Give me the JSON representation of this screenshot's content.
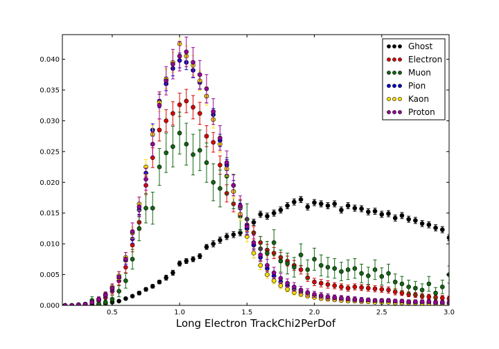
{
  "chart_data": {
    "type": "scatter",
    "title": "",
    "xlabel": "Long Electron TrackChi2PerDof",
    "ylabel": "",
    "xlim": [
      0.13,
      3.0
    ],
    "ylim": [
      0.0,
      0.044
    ],
    "xticks": [
      0.5,
      1.0,
      1.5,
      2.0,
      2.5,
      3.0
    ],
    "xtick_labels": [
      "0.5",
      "1.0",
      "1.5",
      "2.0",
      "2.5",
      "3.0"
    ],
    "yticks": [
      0.0,
      0.005,
      0.01,
      0.015,
      0.02,
      0.025,
      0.03,
      0.035,
      0.04
    ],
    "ytick_labels": [
      "0.000",
      "0.005",
      "0.010",
      "0.015",
      "0.020",
      "0.025",
      "0.030",
      "0.035",
      "0.040"
    ],
    "grid": false,
    "legend_position": "top-right",
    "series": [
      {
        "name": "Ghost",
        "color": "#000000",
        "x": [
          0.15,
          0.2,
          0.25,
          0.3,
          0.35,
          0.4,
          0.45,
          0.5,
          0.55,
          0.6,
          0.65,
          0.7,
          0.75,
          0.8,
          0.85,
          0.9,
          0.95,
          1.0,
          1.05,
          1.1,
          1.15,
          1.2,
          1.25,
          1.3,
          1.35,
          1.4,
          1.45,
          1.5,
          1.55,
          1.6,
          1.65,
          1.7,
          1.75,
          1.8,
          1.85,
          1.9,
          1.95,
          2.0,
          2.05,
          2.1,
          2.15,
          2.2,
          2.25,
          2.3,
          2.35,
          2.4,
          2.45,
          2.5,
          2.55,
          2.6,
          2.65,
          2.7,
          2.75,
          2.8,
          2.85,
          2.9,
          2.95,
          3.0
        ],
        "y": [
          0.0,
          0.0,
          0.0,
          0.0001,
          0.0001,
          0.0002,
          0.0003,
          0.0005,
          0.0007,
          0.0011,
          0.0015,
          0.002,
          0.0026,
          0.0031,
          0.0038,
          0.0045,
          0.0053,
          0.0068,
          0.0072,
          0.0075,
          0.008,
          0.0095,
          0.01,
          0.0106,
          0.0112,
          0.0115,
          0.0118,
          0.0125,
          0.0135,
          0.0148,
          0.0145,
          0.015,
          0.0155,
          0.0162,
          0.0168,
          0.0172,
          0.016,
          0.0167,
          0.0165,
          0.0162,
          0.0165,
          0.0155,
          0.0162,
          0.0158,
          0.0157,
          0.0152,
          0.0153,
          0.0148,
          0.0149,
          0.0142,
          0.0146,
          0.014,
          0.0138,
          0.0133,
          0.0131,
          0.0126,
          0.0123,
          0.011
        ],
        "err": [
          0.0,
          0.0,
          0.0,
          0.0001,
          0.0001,
          0.0001,
          0.0001,
          0.0002,
          0.0002,
          0.0002,
          0.0002,
          0.0003,
          0.0003,
          0.0003,
          0.0003,
          0.0004,
          0.0004,
          0.0004,
          0.0004,
          0.0004,
          0.0004,
          0.0004,
          0.0005,
          0.0005,
          0.0005,
          0.0005,
          0.0005,
          0.0005,
          0.0005,
          0.0005,
          0.0005,
          0.0005,
          0.0005,
          0.0005,
          0.0005,
          0.0005,
          0.0005,
          0.0005,
          0.0005,
          0.0005,
          0.0005,
          0.0005,
          0.0005,
          0.0005,
          0.0005,
          0.0005,
          0.0005,
          0.0005,
          0.0005,
          0.0005,
          0.0005,
          0.0005,
          0.0005,
          0.0005,
          0.0005,
          0.0005,
          0.0005,
          0.0005
        ]
      },
      {
        "name": "Electron",
        "color": "#dd0000",
        "x": [
          0.15,
          0.2,
          0.25,
          0.3,
          0.35,
          0.4,
          0.45,
          0.5,
          0.55,
          0.6,
          0.65,
          0.7,
          0.75,
          0.8,
          0.85,
          0.9,
          0.95,
          1.0,
          1.05,
          1.1,
          1.15,
          1.2,
          1.25,
          1.3,
          1.35,
          1.4,
          1.45,
          1.5,
          1.55,
          1.6,
          1.65,
          1.7,
          1.75,
          1.8,
          1.85,
          1.9,
          1.95,
          2.0,
          2.05,
          2.1,
          2.15,
          2.2,
          2.25,
          2.3,
          2.35,
          2.4,
          2.45,
          2.5,
          2.55,
          2.6,
          2.65,
          2.7,
          2.75,
          2.8,
          2.85,
          2.9,
          2.95,
          3.0
        ],
        "y": [
          0.0,
          0.0,
          0.0001,
          0.0002,
          0.0004,
          0.0007,
          0.0013,
          0.0023,
          0.004,
          0.0062,
          0.0098,
          0.0135,
          0.0195,
          0.024,
          0.0285,
          0.03,
          0.0312,
          0.0326,
          0.0332,
          0.0322,
          0.0312,
          0.0275,
          0.0265,
          0.0228,
          0.0182,
          0.0165,
          0.016,
          0.0131,
          0.0118,
          0.0102,
          0.009,
          0.0085,
          0.0078,
          0.0072,
          0.0065,
          0.0058,
          0.0045,
          0.0038,
          0.0036,
          0.0034,
          0.0032,
          0.003,
          0.0028,
          0.003,
          0.0029,
          0.0028,
          0.0027,
          0.0026,
          0.0025,
          0.0022,
          0.002,
          0.0018,
          0.0017,
          0.0015,
          0.0014,
          0.0013,
          0.0012,
          0.0011
        ],
        "err": [
          0.0,
          0.0,
          0.0001,
          0.0001,
          0.0002,
          0.0003,
          0.0004,
          0.0005,
          0.0007,
          0.0009,
          0.0011,
          0.0013,
          0.0015,
          0.0016,
          0.0018,
          0.0018,
          0.0019,
          0.0019,
          0.0019,
          0.0019,
          0.0018,
          0.0017,
          0.0016,
          0.0015,
          0.0014,
          0.0013,
          0.0012,
          0.0011,
          0.001,
          0.001,
          0.0009,
          0.0009,
          0.0008,
          0.0008,
          0.0008,
          0.0007,
          0.0006,
          0.0006,
          0.0006,
          0.0006,
          0.0005,
          0.0005,
          0.0005,
          0.0005,
          0.0005,
          0.0005,
          0.0005,
          0.0005,
          0.0005,
          0.0005,
          0.0004,
          0.0004,
          0.0004,
          0.0004,
          0.0004,
          0.0004,
          0.0004,
          0.0004
        ]
      },
      {
        "name": "Muon",
        "color": "#116611",
        "x": [
          0.15,
          0.2,
          0.25,
          0.3,
          0.35,
          0.4,
          0.45,
          0.5,
          0.55,
          0.6,
          0.65,
          0.7,
          0.75,
          0.8,
          0.85,
          0.9,
          0.95,
          1.0,
          1.05,
          1.1,
          1.15,
          1.2,
          1.25,
          1.3,
          1.35,
          1.4,
          1.45,
          1.5,
          1.55,
          1.6,
          1.65,
          1.7,
          1.75,
          1.8,
          1.85,
          1.9,
          1.95,
          2.0,
          2.05,
          2.1,
          2.15,
          2.2,
          2.25,
          2.3,
          2.35,
          2.4,
          2.45,
          2.5,
          2.55,
          2.6,
          2.65,
          2.7,
          2.75,
          2.8,
          2.85,
          2.9,
          2.95,
          3.0
        ],
        "y": [
          0.0,
          0.0,
          0.0,
          0.0,
          0.0008,
          0.0002,
          0.0005,
          0.001,
          0.0023,
          0.004,
          0.0075,
          0.0125,
          0.0158,
          0.0158,
          0.0225,
          0.0248,
          0.0258,
          0.028,
          0.0262,
          0.0245,
          0.0252,
          0.0232,
          0.02,
          0.019,
          0.021,
          0.0185,
          0.0145,
          0.014,
          0.0098,
          0.0092,
          0.0085,
          0.0102,
          0.0072,
          0.0068,
          0.0062,
          0.0082,
          0.0058,
          0.0075,
          0.0065,
          0.0062,
          0.006,
          0.0055,
          0.0058,
          0.006,
          0.0052,
          0.0048,
          0.0058,
          0.0047,
          0.0052,
          0.0038,
          0.0035,
          0.003,
          0.0028,
          0.0025,
          0.0035,
          0.002,
          0.003,
          0.005
        ],
        "err": [
          0.0,
          0.0,
          0.0,
          0.0,
          0.0006,
          0.0002,
          0.0004,
          0.0006,
          0.0009,
          0.0012,
          0.0016,
          0.002,
          0.0024,
          0.0026,
          0.003,
          0.0032,
          0.0033,
          0.0034,
          0.0034,
          0.0033,
          0.0033,
          0.0032,
          0.003,
          0.003,
          0.003,
          0.0028,
          0.0025,
          0.0025,
          0.0021,
          0.002,
          0.0019,
          0.0021,
          0.0018,
          0.0017,
          0.0016,
          0.0018,
          0.0016,
          0.0018,
          0.0017,
          0.0016,
          0.0016,
          0.0015,
          0.0016,
          0.0016,
          0.0015,
          0.0014,
          0.0016,
          0.0014,
          0.0015,
          0.0013,
          0.0012,
          0.0011,
          0.0011,
          0.001,
          0.0012,
          0.0009,
          0.0011,
          0.0014
        ]
      },
      {
        "name": "Pion",
        "color": "#0000cc",
        "x": [
          0.15,
          0.2,
          0.25,
          0.3,
          0.35,
          0.4,
          0.45,
          0.5,
          0.55,
          0.6,
          0.65,
          0.7,
          0.75,
          0.8,
          0.85,
          0.9,
          0.95,
          1.0,
          1.05,
          1.1,
          1.15,
          1.2,
          1.25,
          1.3,
          1.35,
          1.4,
          1.45,
          1.5,
          1.55,
          1.6,
          1.65,
          1.7,
          1.75,
          1.8,
          1.85,
          1.9,
          1.95,
          2.0,
          2.05,
          2.1,
          2.15,
          2.2,
          2.25,
          2.3,
          2.35,
          2.4,
          2.45,
          2.5,
          2.55,
          2.6,
          2.65,
          2.7,
          2.75,
          2.8,
          2.85,
          2.9,
          2.95,
          3.0
        ],
        "y": [
          0.0,
          0.0,
          0.0001,
          0.0002,
          0.0005,
          0.0009,
          0.0016,
          0.0027,
          0.0045,
          0.0073,
          0.0108,
          0.0155,
          0.0215,
          0.0285,
          0.0332,
          0.036,
          0.0385,
          0.0398,
          0.0395,
          0.0382,
          0.0362,
          0.034,
          0.031,
          0.0268,
          0.0228,
          0.0195,
          0.0158,
          0.0125,
          0.0098,
          0.0078,
          0.006,
          0.0048,
          0.0038,
          0.0032,
          0.0026,
          0.0022,
          0.0019,
          0.0016,
          0.0014,
          0.0012,
          0.0011,
          0.001,
          0.0009,
          0.0009,
          0.0008,
          0.0008,
          0.0007,
          0.0007,
          0.0007,
          0.0006,
          0.0006,
          0.0006,
          0.0005,
          0.0005,
          0.0005,
          0.0005,
          0.0005,
          0.0004
        ],
        "err": [
          0.0,
          0.0,
          0.0001,
          0.0001,
          0.0002,
          0.0002,
          0.0003,
          0.0004,
          0.0005,
          0.0006,
          0.0007,
          0.0008,
          0.0009,
          0.001,
          0.0011,
          0.0011,
          0.0012,
          0.0012,
          0.0012,
          0.0012,
          0.0011,
          0.0011,
          0.001,
          0.001,
          0.0009,
          0.0008,
          0.0008,
          0.0007,
          0.0006,
          0.0005,
          0.0005,
          0.0004,
          0.0004,
          0.0004,
          0.0003,
          0.0003,
          0.0003,
          0.0003,
          0.0002,
          0.0002,
          0.0002,
          0.0002,
          0.0002,
          0.0002,
          0.0002,
          0.0002,
          0.0002,
          0.0002,
          0.0002,
          0.0002,
          0.0002,
          0.0002,
          0.0002,
          0.0002,
          0.0002,
          0.0002,
          0.0002,
          0.0002
        ]
      },
      {
        "name": "Kaon",
        "color": "#ffdd00",
        "x": [
          0.15,
          0.2,
          0.25,
          0.3,
          0.35,
          0.4,
          0.45,
          0.5,
          0.55,
          0.6,
          0.65,
          0.7,
          0.75,
          0.8,
          0.85,
          0.9,
          0.95,
          1.0,
          1.05,
          1.1,
          1.15,
          1.2,
          1.25,
          1.3,
          1.35,
          1.4,
          1.45,
          1.5,
          1.55,
          1.6,
          1.65,
          1.7,
          1.75,
          1.8,
          1.85,
          1.9,
          1.95,
          2.0,
          2.05,
          2.1,
          2.15,
          2.2,
          2.25,
          2.3,
          2.35,
          2.4,
          2.45,
          2.5,
          2.55,
          2.6,
          2.65,
          2.7,
          2.75,
          2.8,
          2.85,
          2.9,
          2.95,
          3.0
        ],
        "y": [
          0.0,
          0.0,
          0.0001,
          0.0002,
          0.0005,
          0.001,
          0.0018,
          0.003,
          0.0048,
          0.0078,
          0.0118,
          0.0165,
          0.0225,
          0.0278,
          0.033,
          0.0368,
          0.0395,
          0.0425,
          0.0405,
          0.039,
          0.0365,
          0.034,
          0.0302,
          0.0262,
          0.0222,
          0.0185,
          0.0148,
          0.0112,
          0.0085,
          0.0065,
          0.005,
          0.004,
          0.0032,
          0.0026,
          0.0021,
          0.0018,
          0.0015,
          0.0013,
          0.0011,
          0.001,
          0.0009,
          0.0008,
          0.0007,
          0.0007,
          0.0006,
          0.0006,
          0.0005,
          0.0005,
          0.0005,
          0.0004,
          0.0004,
          0.0004,
          0.0004,
          0.0003,
          0.0003,
          0.0003,
          0.0003,
          0.0003
        ],
        "err": [
          0.0,
          0.0,
          0.0001,
          0.0001,
          0.0002,
          0.0003,
          0.0004,
          0.0005,
          0.0006,
          0.0008,
          0.0009,
          0.0011,
          0.0012,
          0.0014,
          0.0015,
          0.0016,
          0.0016,
          0.0017,
          0.0017,
          0.0016,
          0.0016,
          0.0015,
          0.0014,
          0.0013,
          0.0012,
          0.0011,
          0.001,
          0.0009,
          0.0008,
          0.0007,
          0.0006,
          0.0005,
          0.0005,
          0.0004,
          0.0004,
          0.0004,
          0.0003,
          0.0003,
          0.0003,
          0.0003,
          0.0002,
          0.0002,
          0.0002,
          0.0002,
          0.0002,
          0.0002,
          0.0002,
          0.0002,
          0.0002,
          0.0002,
          0.0002,
          0.0002,
          0.0002,
          0.0001,
          0.0001,
          0.0001,
          0.0001,
          0.0001
        ]
      },
      {
        "name": "Proton",
        "color": "#990099",
        "x": [
          0.15,
          0.2,
          0.25,
          0.3,
          0.35,
          0.4,
          0.45,
          0.5,
          0.55,
          0.6,
          0.65,
          0.7,
          0.75,
          0.8,
          0.85,
          0.9,
          0.95,
          1.0,
          1.05,
          1.1,
          1.15,
          1.2,
          1.25,
          1.3,
          1.35,
          1.4,
          1.45,
          1.5,
          1.55,
          1.6,
          1.65,
          1.7,
          1.75,
          1.8,
          1.85,
          1.9,
          1.95,
          2.0,
          2.05,
          2.1,
          2.15,
          2.2,
          2.25,
          2.3,
          2.35,
          2.4,
          2.45,
          2.5,
          2.55,
          2.6,
          2.65,
          2.7,
          2.75,
          2.8,
          2.85,
          2.9,
          2.95,
          3.0
        ],
        "y": [
          0.0,
          0.0,
          0.0001,
          0.0002,
          0.0005,
          0.001,
          0.0017,
          0.0028,
          0.0046,
          0.0075,
          0.012,
          0.016,
          0.0205,
          0.0262,
          0.0325,
          0.0365,
          0.0392,
          0.0405,
          0.0412,
          0.0395,
          0.0375,
          0.0352,
          0.0315,
          0.0272,
          0.0232,
          0.0195,
          0.0162,
          0.0128,
          0.0102,
          0.0082,
          0.0065,
          0.0053,
          0.0044,
          0.0036,
          0.003,
          0.0025,
          0.0021,
          0.0018,
          0.0016,
          0.0014,
          0.0013,
          0.0012,
          0.0011,
          0.001,
          0.0009,
          0.0009,
          0.0008,
          0.0008,
          0.0008,
          0.0007,
          0.0007,
          0.0006,
          0.0006,
          0.0006,
          0.0006,
          0.0005,
          0.0005,
          0.0005
        ],
        "err": [
          0.0,
          0.0,
          0.0001,
          0.0002,
          0.0003,
          0.0004,
          0.0005,
          0.0007,
          0.0009,
          0.0011,
          0.0014,
          0.0016,
          0.0018,
          0.002,
          0.0022,
          0.0023,
          0.0024,
          0.0024,
          0.0024,
          0.0024,
          0.0023,
          0.0023,
          0.0021,
          0.002,
          0.0019,
          0.0017,
          0.0016,
          0.0014,
          0.0012,
          0.0011,
          0.001,
          0.0009,
          0.0008,
          0.0007,
          0.0007,
          0.0006,
          0.0006,
          0.0005,
          0.0005,
          0.0005,
          0.0004,
          0.0004,
          0.0004,
          0.0004,
          0.0004,
          0.0003,
          0.0003,
          0.0003,
          0.0003,
          0.0003,
          0.0003,
          0.0003,
          0.0003,
          0.0003,
          0.0003,
          0.0003,
          0.0003,
          0.0003
        ]
      }
    ]
  }
}
